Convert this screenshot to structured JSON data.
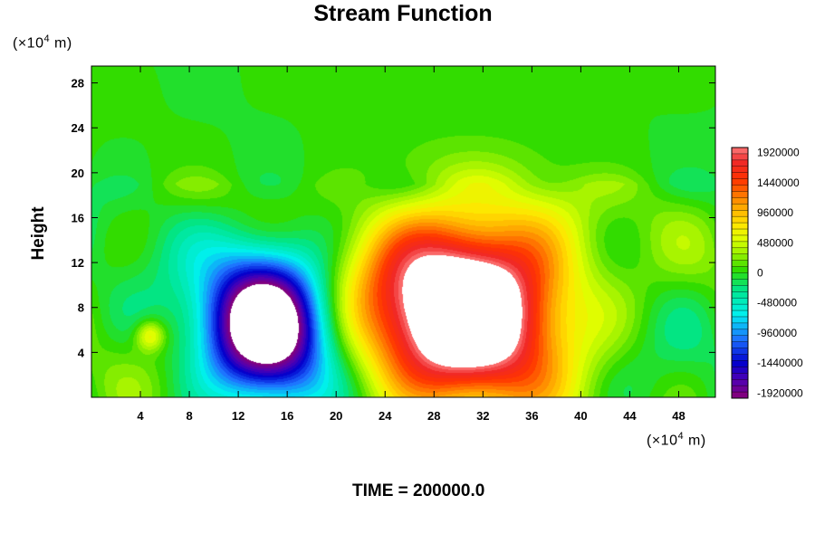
{
  "chart_data": {
    "type": "heatmap",
    "title": "Stream Function",
    "ylabel": "Height",
    "x_unit_prefix": "(×10",
    "x_unit_exp": "4",
    "x_unit_suffix": " m)",
    "y_unit_prefix": "(×10",
    "y_unit_exp": "4",
    "y_unit_suffix": " m)",
    "xlim": [
      0,
      51
    ],
    "ylim": [
      0,
      29.5
    ],
    "x_ticks": [
      4,
      8,
      12,
      16,
      20,
      24,
      28,
      32,
      36,
      40,
      44,
      48
    ],
    "y_ticks": [
      4,
      8,
      12,
      16,
      20,
      24,
      28
    ],
    "annotation": "TIME = 200000.0",
    "value_range": [
      -2000000,
      2000000
    ],
    "colorbar": {
      "labels": [
        "1920000",
        "1440000",
        "960000",
        "480000",
        "0",
        "-480000",
        "-960000",
        "-1440000",
        "-1920000"
      ],
      "label_values": [
        1920000,
        1440000,
        960000,
        480000,
        0,
        -480000,
        -960000,
        -1440000,
        -1920000
      ],
      "levels": 40,
      "over_color": "#ffffff"
    },
    "features": [
      {
        "name": "negative-vortex",
        "center": [
          14.3,
          6.5
        ],
        "radius": [
          5.5,
          7.0
        ],
        "peak": -2700000
      },
      {
        "name": "positive-vortex",
        "center": [
          30.5,
          8.0
        ],
        "radius": [
          9.0,
          9.0
        ],
        "peak": 3000000
      },
      {
        "name": "small-positive-blob",
        "center": [
          4.8,
          5.5
        ],
        "radius": [
          1.3,
          1.5
        ],
        "peak": 700000
      }
    ],
    "grid": false,
    "colors": {
      "background_field": "#ddff00",
      "negative_extreme": "#800080",
      "positive_extreme": "#ff8080"
    }
  }
}
